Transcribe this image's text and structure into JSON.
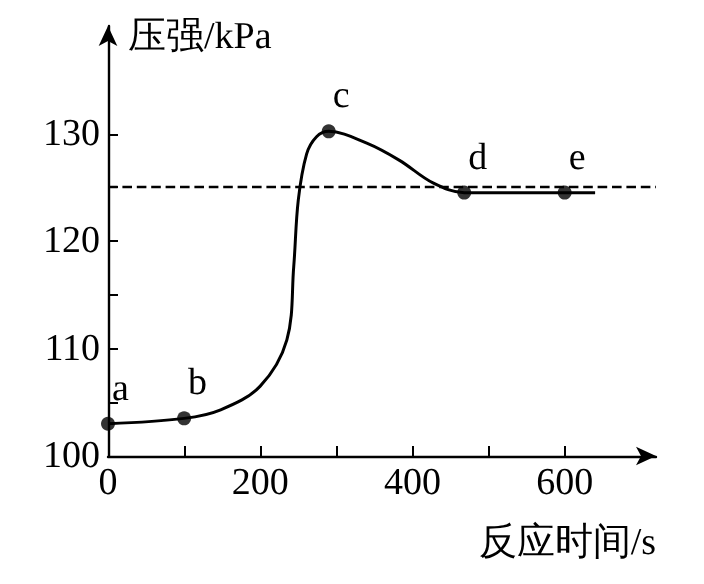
{
  "chart_data": {
    "type": "line",
    "xlabel": "反应时间/s",
    "ylabel": "压强/kPa",
    "xlim": [
      0,
      720
    ],
    "ylim": [
      100,
      140
    ],
    "xticks": [
      0,
      {
        "value": 100,
        "label": null
      },
      200,
      {
        "value": 300,
        "label": null
      },
      400,
      {
        "value": 500,
        "label": null
      },
      600
    ],
    "yticks": [
      100,
      {
        "value": 105,
        "label": null
      },
      110,
      {
        "value": 115,
        "label": null
      },
      120,
      {
        "value": 125,
        "label": null
      },
      130
    ],
    "series": [
      {
        "color": "#000000",
        "marker": "none",
        "x": [
          0,
          100,
          148,
          200,
          235,
          244,
          250,
          261,
          274,
          290,
          340,
          383,
          427,
          468,
          600,
          640
        ],
        "values": [
          103,
          103.5,
          104.3,
          106.5,
          110.8,
          117.6,
          123.8,
          128.1,
          129.7,
          130.2,
          129.1,
          127.5,
          125.4,
          124.5,
          124.5,
          124.5
        ]
      },
      {
        "type": "scatter",
        "color": "#000000",
        "marker": "circle",
        "x": [
          0,
          100,
          290,
          468,
          600
        ],
        "values": [
          103,
          103.5,
          130.2,
          124.5,
          124.5
        ]
      }
    ],
    "ref_lines": [
      {
        "axis": "y",
        "value": 125,
        "color": "#000000",
        "line_style": "dashed"
      }
    ],
    "annotations": [
      {
        "text": "a",
        "x": 0,
        "y": 103
      },
      {
        "text": "b",
        "x": 100,
        "y": 103.5
      },
      {
        "text": "c",
        "x": 290,
        "y": 130.2
      },
      {
        "text": "d",
        "x": 468,
        "y": 124.5
      },
      {
        "text": "e",
        "x": 600,
        "y": 124.5
      }
    ]
  }
}
